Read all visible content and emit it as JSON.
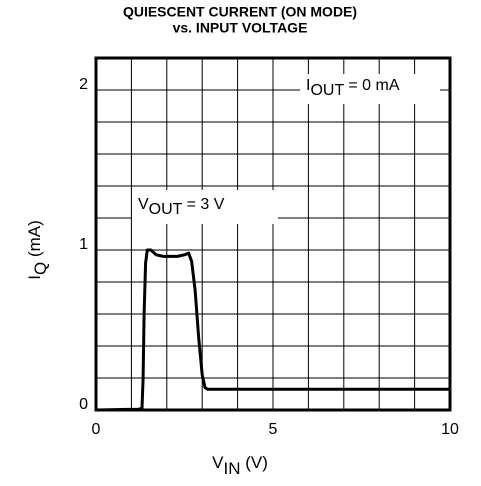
{
  "chart_data": {
    "type": "line",
    "title": [
      "QUIESCENT CURRENT (ON MODE)",
      "vs. INPUT VOLTAGE"
    ],
    "x_label": {
      "main": "V",
      "sub": "IN",
      "rest": " (V)"
    },
    "y_label": {
      "main": "I",
      "sub": "Q",
      "rest": " (mA)"
    },
    "annotations": [
      {
        "main": "I",
        "sub": "OUT",
        "rest": " = 0 mA"
      },
      {
        "main": "V",
        "sub": "OUT",
        "rest": " = 3 V"
      }
    ],
    "xlim": [
      0,
      10
    ],
    "ylim": [
      0,
      2.2
    ],
    "xticks": [
      0,
      5,
      10
    ],
    "yticks": [
      0,
      1,
      2
    ],
    "xgrid": [
      1,
      2,
      3,
      4,
      5,
      6,
      7,
      8,
      9
    ],
    "ygrid": [
      0.2,
      0.4,
      0.6,
      0.8,
      1,
      1.2,
      1.4,
      1.6,
      1.8,
      2
    ],
    "grid": true,
    "series": [
      {
        "name": null,
        "color": "#000000",
        "x": [
          0,
          1.2,
          1.3,
          1.33,
          1.36,
          1.4,
          1.45,
          1.55,
          1.7,
          1.9,
          2.1,
          2.3,
          2.5,
          2.62,
          2.7,
          2.8,
          2.9,
          3.0,
          3.08,
          3.15,
          10
        ],
        "values": [
          0,
          0.005,
          0.01,
          0.2,
          0.6,
          0.92,
          1.0,
          1.0,
          0.97,
          0.96,
          0.96,
          0.96,
          0.97,
          0.98,
          0.93,
          0.75,
          0.45,
          0.22,
          0.14,
          0.13,
          0.13
        ]
      }
    ]
  }
}
